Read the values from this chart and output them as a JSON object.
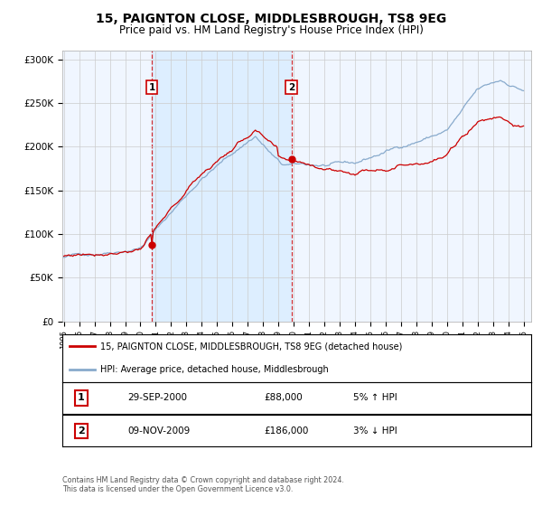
{
  "title": "15, PAIGNTON CLOSE, MIDDLESBROUGH, TS8 9EG",
  "subtitle": "Price paid vs. HM Land Registry's House Price Index (HPI)",
  "ylim": [
    0,
    310000
  ],
  "yticks": [
    0,
    50000,
    100000,
    150000,
    200000,
    250000,
    300000
  ],
  "ytick_labels": [
    "£0",
    "£50K",
    "£100K",
    "£150K",
    "£200K",
    "£250K",
    "£300K"
  ],
  "sale1": {
    "date_num": 2000.75,
    "price": 88000,
    "label": "1",
    "date_str": "29-SEP-2000",
    "pct": "5%",
    "dir": "↑"
  },
  "sale2": {
    "date_num": 2009.85,
    "price": 186000,
    "label": "2",
    "date_str": "09-NOV-2009",
    "pct": "3%",
    "dir": "↓"
  },
  "legend_line1": "15, PAIGNTON CLOSE, MIDDLESBROUGH, TS8 9EG (detached house)",
  "legend_line2": "HPI: Average price, detached house, Middlesbrough",
  "footer1": "Contains HM Land Registry data © Crown copyright and database right 2024.",
  "footer2": "This data is licensed under the Open Government Licence v3.0.",
  "red_color": "#cc0000",
  "blue_color": "#88aacc",
  "shade_color": "#ddeeff",
  "background_color": "#ffffff",
  "grid_color": "#cccccc",
  "title_fontsize": 10,
  "subtitle_fontsize": 8.5,
  "axis_fontsize": 7.5
}
